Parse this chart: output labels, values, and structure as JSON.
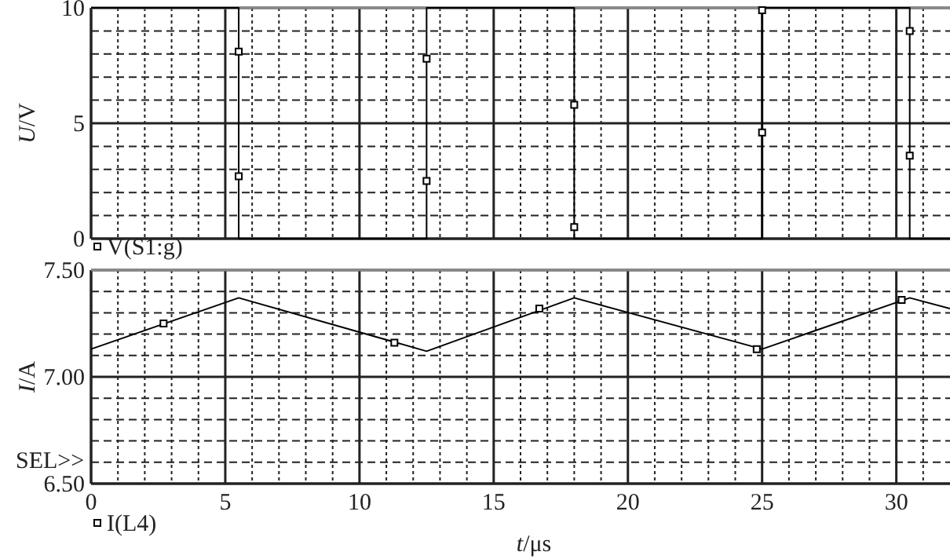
{
  "chart_data": [
    {
      "type": "line",
      "ylabel": "U/V",
      "xlim": [
        0,
        32
      ],
      "ylim": [
        0,
        10
      ],
      "xticks": [
        0,
        {
          "value": 1,
          "label": null
        },
        {
          "value": 2,
          "label": null
        },
        {
          "value": 3,
          "label": null
        },
        {
          "value": 4,
          "label": null
        },
        5,
        {
          "value": 6,
          "label": null
        },
        {
          "value": 7,
          "label": null
        },
        {
          "value": 8,
          "label": null
        },
        {
          "value": 9,
          "label": null
        },
        10,
        {
          "value": 11,
          "label": null
        },
        {
          "value": 12,
          "label": null
        },
        {
          "value": 13,
          "label": null
        },
        {
          "value": 14,
          "label": null
        },
        15,
        {
          "value": 16,
          "label": null
        },
        {
          "value": 17,
          "label": null
        },
        {
          "value": 18,
          "label": null
        },
        {
          "value": 19,
          "label": null
        },
        20,
        {
          "value": 21,
          "label": null
        },
        {
          "value": 22,
          "label": null
        },
        {
          "value": 23,
          "label": null
        },
        {
          "value": 24,
          "label": null
        },
        25,
        {
          "value": 26,
          "label": null
        },
        {
          "value": 27,
          "label": null
        },
        {
          "value": 28,
          "label": null
        },
        {
          "value": 29,
          "label": null
        },
        30,
        {
          "value": 31,
          "label": null
        }
      ],
      "yticks": [
        0,
        {
          "value": 1,
          "label": null
        },
        {
          "value": 2,
          "label": null
        },
        {
          "value": 3,
          "label": null
        },
        {
          "value": 4,
          "label": null
        },
        5,
        {
          "value": 6,
          "label": null
        },
        {
          "value": 7,
          "label": null
        },
        {
          "value": 8,
          "label": null
        },
        {
          "value": 9,
          "label": null
        },
        10
      ],
      "tick_labels": "y",
      "grid": true,
      "legend": "bottom left",
      "series": [
        {
          "name": "V(S1:g)",
          "color": "#000000",
          "x": [
            0,
            5.5,
            5.5,
            12.5,
            12.5,
            18,
            18,
            25,
            25,
            30.5,
            30.5,
            32
          ],
          "values": [
            10,
            10,
            0,
            0,
            10,
            10,
            0,
            0,
            10,
            10,
            0,
            0
          ]
        },
        {
          "type": "scatter",
          "marker": "square",
          "color": "#000000",
          "x": [
            5.5,
            5.5,
            12.5,
            12.5,
            18,
            18,
            25,
            25,
            30.5,
            30.5
          ],
          "values": [
            8.1,
            2.7,
            7.8,
            2.5,
            5.8,
            0.5,
            9.9,
            4.6,
            9.0,
            3.6
          ]
        }
      ]
    },
    {
      "type": "line",
      "xlabel": "t/μs",
      "ylabel": "I/A",
      "xlim": [
        0,
        32
      ],
      "ylim": [
        6.5,
        7.5
      ],
      "xticks": [
        0,
        {
          "value": 1,
          "label": null
        },
        {
          "value": 2,
          "label": null
        },
        {
          "value": 3,
          "label": null
        },
        {
          "value": 4,
          "label": null
        },
        5,
        {
          "value": 6,
          "label": null
        },
        {
          "value": 7,
          "label": null
        },
        {
          "value": 8,
          "label": null
        },
        {
          "value": 9,
          "label": null
        },
        10,
        {
          "value": 11,
          "label": null
        },
        {
          "value": 12,
          "label": null
        },
        {
          "value": 13,
          "label": null
        },
        {
          "value": 14,
          "label": null
        },
        15,
        {
          "value": 16,
          "label": null
        },
        {
          "value": 17,
          "label": null
        },
        {
          "value": 18,
          "label": null
        },
        {
          "value": 19,
          "label": null
        },
        20,
        {
          "value": 21,
          "label": null
        },
        {
          "value": 22,
          "label": null
        },
        {
          "value": 23,
          "label": null
        },
        {
          "value": 24,
          "label": null
        },
        25,
        {
          "value": 26,
          "label": null
        },
        {
          "value": 27,
          "label": null
        },
        {
          "value": 28,
          "label": null
        },
        {
          "value": 29,
          "label": null
        },
        30,
        {
          "value": 31,
          "label": null
        }
      ],
      "yticks": [
        {
          "value": 6.5,
          "label": "6.50"
        },
        {
          "value": 6.6,
          "label": null
        },
        {
          "value": 6.7,
          "label": null
        },
        {
          "value": 6.8,
          "label": null
        },
        {
          "value": 6.9,
          "label": null
        },
        {
          "value": 7.0,
          "label": "7.00"
        },
        {
          "value": 7.1,
          "label": null
        },
        {
          "value": 7.2,
          "label": null
        },
        {
          "value": 7.3,
          "label": null
        },
        {
          "value": 7.4,
          "label": null
        },
        {
          "value": 7.5,
          "label": "7.50"
        }
      ],
      "grid": true,
      "legend": "bottom left",
      "annotations": [
        "SEL>>"
      ],
      "series": [
        {
          "name": "I(L4)",
          "color": "#000000",
          "x": [
            0,
            5.5,
            12.5,
            18,
            25,
            30.5,
            32
          ],
          "values": [
            7.13,
            7.37,
            7.12,
            7.37,
            7.13,
            7.37,
            7.32
          ]
        },
        {
          "type": "scatter",
          "marker": "square",
          "color": "#000000",
          "x": [
            2.7,
            11.3,
            16.7,
            24.8,
            30.2
          ],
          "values": [
            7.25,
            7.16,
            7.32,
            7.13,
            7.36
          ]
        }
      ]
    }
  ]
}
